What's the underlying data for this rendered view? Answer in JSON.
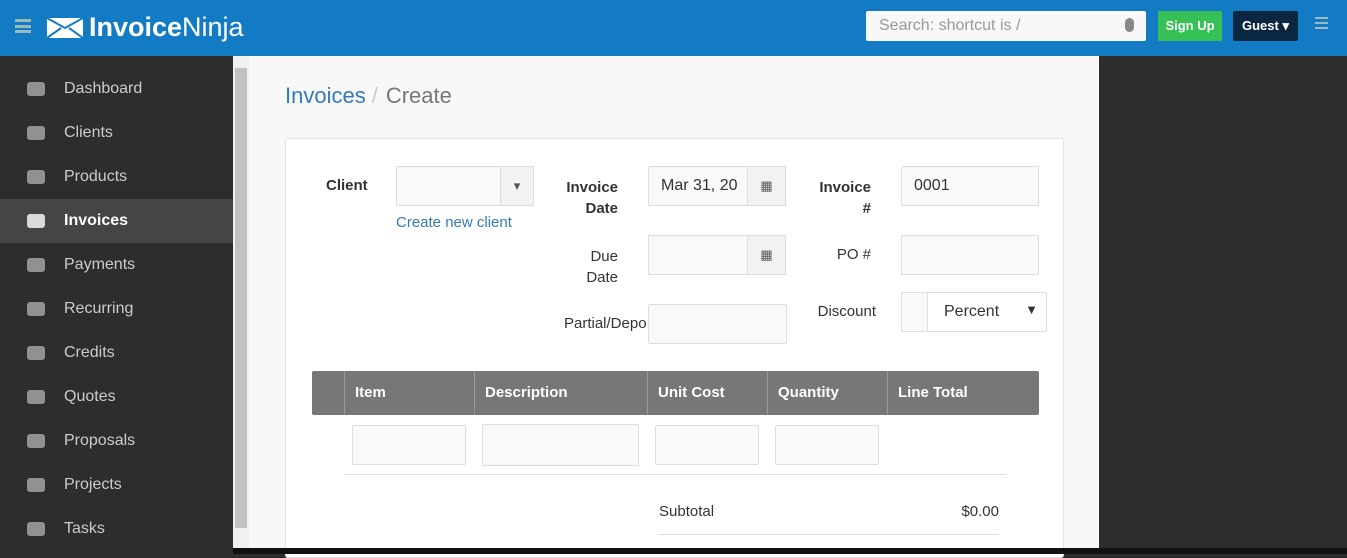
{
  "header": {
    "logo_bold": "Invoice",
    "logo_light": "Ninja",
    "search_placeholder": "Search: shortcut is /",
    "signup": "Sign Up",
    "guest": "Guest ▾"
  },
  "sidebar": {
    "items": [
      {
        "label": "Dashboard",
        "icon": "dashboard-icon"
      },
      {
        "label": "Clients",
        "icon": "users-icon"
      },
      {
        "label": "Products",
        "icon": "cube-icon"
      },
      {
        "label": "Invoices",
        "icon": "file-pdf-icon",
        "active": true
      },
      {
        "label": "Payments",
        "icon": "credit-card-icon"
      },
      {
        "label": "Recurring",
        "icon": "copy-icon"
      },
      {
        "label": "Credits",
        "icon": "credit-card-icon"
      },
      {
        "label": "Quotes",
        "icon": "file-text-icon"
      },
      {
        "label": "Proposals",
        "icon": "th-large-icon"
      },
      {
        "label": "Projects",
        "icon": "briefcase-icon"
      },
      {
        "label": "Tasks",
        "icon": "clock-icon"
      }
    ]
  },
  "breadcrumb": {
    "parent": "Invoices",
    "sep": "/",
    "current": "Create"
  },
  "form": {
    "client_label": "Client",
    "create_client": "Create new client",
    "invoice_date_label1": "Invoice",
    "invoice_date_label2": "Date",
    "invoice_date": "Mar 31, 20",
    "due_date_label1": "Due",
    "due_date_label2": "Date",
    "partial_label": "Partial/Depo",
    "invoice_no_label1": "Invoice",
    "invoice_no_label2": "#",
    "invoice_no": "0001",
    "po_label": "PO #",
    "discount_label": "Discount",
    "discount_type": "Percent"
  },
  "table": {
    "headers": [
      "Item",
      "Description",
      "Unit Cost",
      "Quantity",
      "Line Total"
    ]
  },
  "totals": {
    "subtotal_label": "Subtotal",
    "subtotal": "$0.00"
  }
}
